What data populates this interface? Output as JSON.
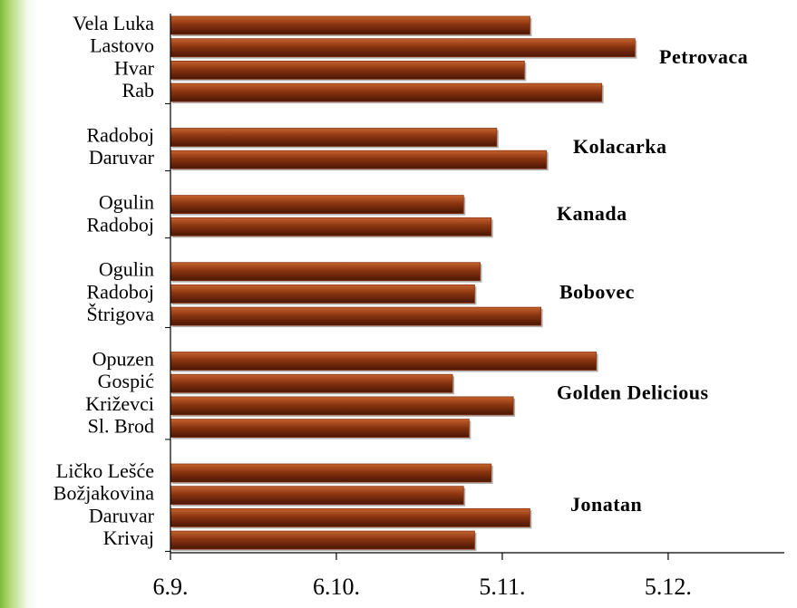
{
  "chart_data": {
    "type": "bar",
    "orientation": "horizontal",
    "groups": [
      {
        "name": "Petrovaca",
        "categories": [
          "Vela Luka",
          "Lastovo",
          "Hvar",
          "Rab"
        ],
        "values": [
          314,
          333,
          313,
          327
        ]
      },
      {
        "name": "Kolacarka",
        "categories": [
          "Radoboj",
          "Daruvar"
        ],
        "values": [
          308,
          317
        ]
      },
      {
        "name": "Kanada",
        "categories": [
          "Ogulin",
          "Radoboj"
        ],
        "values": [
          302,
          307
        ]
      },
      {
        "name": "Bobovec",
        "categories": [
          "Ogulin",
          "Radoboj",
          "Štrigova"
        ],
        "values": [
          305,
          304,
          316
        ]
      },
      {
        "name": "Golden Delicious",
        "categories": [
          "Opuzen",
          "Gospić",
          "Križevci",
          "Sl. Brod"
        ],
        "values": [
          326,
          300,
          311,
          303
        ]
      },
      {
        "name": "Jonatan",
        "categories": [
          "Ličko Lešće",
          "Božjakovina",
          "Daruvar",
          "Krivaj"
        ],
        "values": [
          307,
          302,
          314,
          304
        ]
      }
    ],
    "color": "#8a3410",
    "xlim": [
      249,
      360
    ],
    "xticks": [
      {
        "value": 249,
        "label": "6.9."
      },
      {
        "value": 279,
        "label": "6.10."
      },
      {
        "value": 309,
        "label": "5.11."
      },
      {
        "value": 339,
        "label": "5.12."
      }
    ]
  }
}
